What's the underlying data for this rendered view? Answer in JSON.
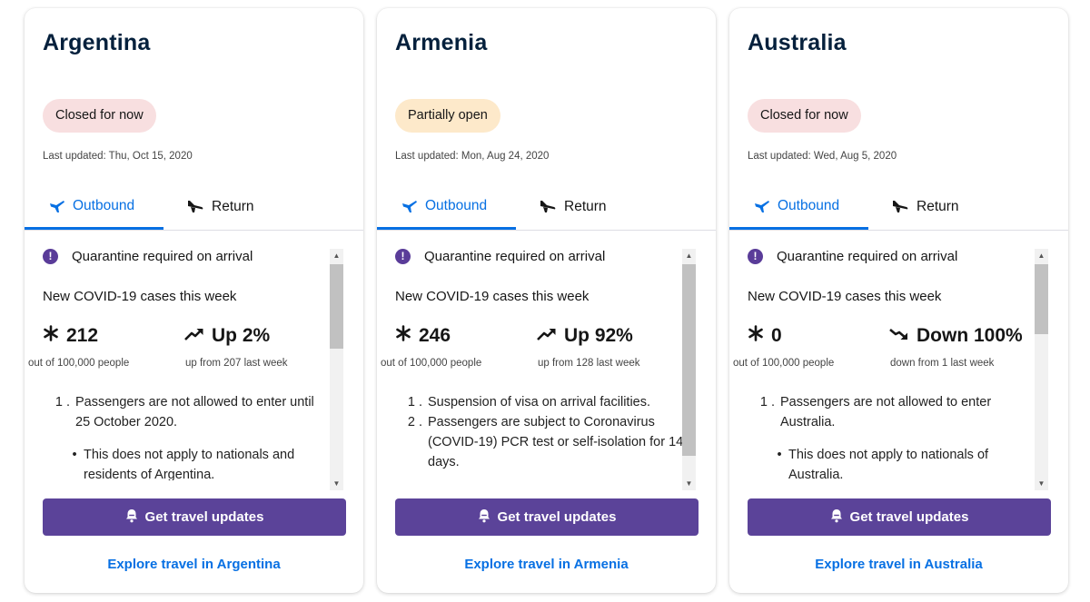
{
  "colors": {
    "accent_blue": "#0770e3",
    "purple_button": "#5b4399",
    "closed_badge_bg": "#f8dfe0",
    "partial_badge_bg": "#fde9ca",
    "title_navy": "#05203c"
  },
  "cards": [
    {
      "country": "Argentina",
      "status": "Closed for now",
      "status_type": "closed",
      "updated": "Last updated: Thu, Oct 15, 2020",
      "tab_outbound": "Outbound",
      "tab_return": "Return",
      "quarantine": "Quarantine required on arrival",
      "cases_title": "New COVID-19 cases this week",
      "cases_value": "212",
      "trend_icon": "trend-up-icon",
      "trend_value": "Up 2%",
      "cases_sub": "out of 100,000 people",
      "trend_sub": "up from 207 last week",
      "notes": [
        {
          "num": "1 .",
          "text": "Passengers are not allowed to enter until 25 October 2020."
        }
      ],
      "bullets": [
        "This does not apply to nationals and residents of Argentina."
      ],
      "scroll_thumb_fraction": 0.4,
      "cta": "Get travel updates",
      "explore": "Explore travel in Argentina"
    },
    {
      "country": "Armenia",
      "status": "Partially open",
      "status_type": "partial",
      "updated": "Last updated: Mon, Aug 24, 2020",
      "tab_outbound": "Outbound",
      "tab_return": "Return",
      "quarantine": "Quarantine required on arrival",
      "cases_title": "New COVID-19 cases this week",
      "cases_value": "246",
      "trend_icon": "trend-up-icon",
      "trend_value": "Up 92%",
      "cases_sub": "out of 100,000 people",
      "trend_sub": "up from 128 last week",
      "notes": [
        {
          "num": "1 .",
          "text": "Suspension of visa on arrival facilities."
        },
        {
          "num": "2 .",
          "text": "Passengers are subject to Coronavirus (COVID-19) PCR test or self-isolation for 14 days."
        }
      ],
      "bullets": [],
      "scroll_thumb_fraction": 0.91,
      "cta": "Get travel updates",
      "explore": "Explore travel in Armenia"
    },
    {
      "country": "Australia",
      "status": "Closed for now",
      "status_type": "closed",
      "updated": "Last updated: Wed, Aug 5, 2020",
      "tab_outbound": "Outbound",
      "tab_return": "Return",
      "quarantine": "Quarantine required on arrival",
      "cases_title": "New COVID-19 cases this week",
      "cases_value": "0",
      "trend_icon": "trend-down-icon",
      "trend_value": "Down 100%",
      "cases_sub": "out of 100,000 people",
      "trend_sub": "down from 1 last week",
      "notes": [
        {
          "num": "1 .",
          "text": "Passengers are not allowed to enter Australia."
        }
      ],
      "bullets": [
        "This does not apply to nationals of Australia."
      ],
      "scroll_thumb_fraction": 0.33,
      "cta": "Get travel updates",
      "explore": "Explore travel in Australia"
    }
  ]
}
